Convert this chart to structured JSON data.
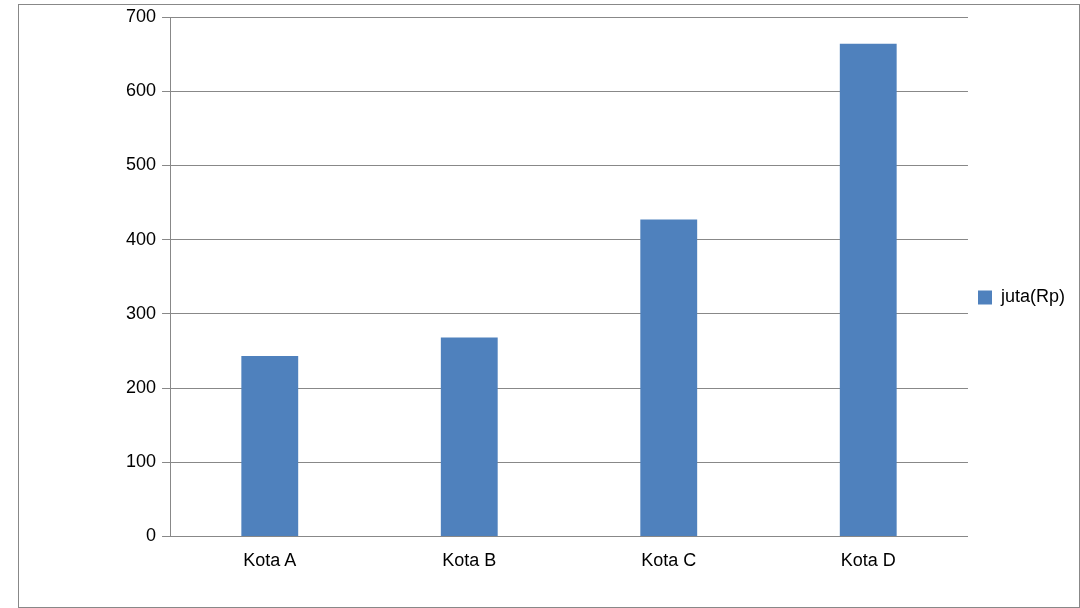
{
  "chart_data": {
    "type": "bar",
    "categories": [
      "Kota A",
      "Kota B",
      "Kota C",
      "Kota D"
    ],
    "series": [
      {
        "name": "juta(Rp)",
        "color": "#4f81bd",
        "values": [
          243,
          268,
          427,
          664
        ]
      }
    ],
    "ylim": [
      0,
      700
    ],
    "yticks": [
      0,
      100,
      200,
      300,
      400,
      500,
      600,
      700
    ],
    "grid": "y",
    "legend": "right"
  }
}
